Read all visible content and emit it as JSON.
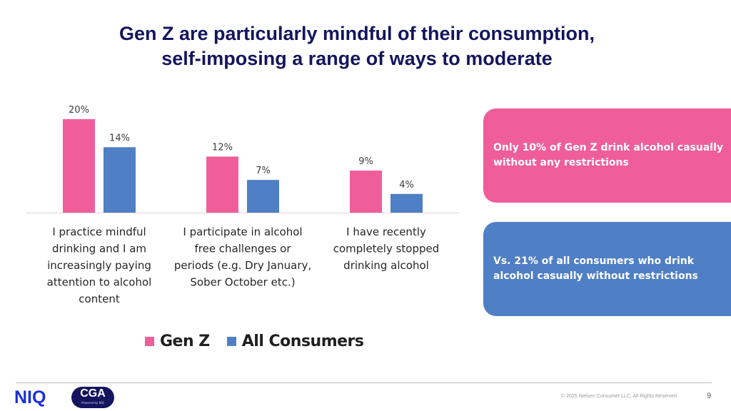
{
  "slide": {
    "title_line1": "Gen Z are particularly mindful of their consumption,",
    "title_line2": "self-imposing a range of ways to moderate",
    "page_number": "9",
    "copyright": "© 2025 Nielsen Consumer LLC. All Rights Reserved."
  },
  "chart_data": {
    "type": "bar",
    "categories": [
      [
        "I practice mindful",
        "drinking and I am",
        "increasingly paying",
        "attention to alcohol",
        "content"
      ],
      [
        "I participate in alcohol",
        "free challenges or",
        "periods (e.g. Dry January,",
        "Sober October etc.)"
      ],
      [
        "I have recently",
        "completely stopped",
        "drinking alcohol"
      ]
    ],
    "series": [
      {
        "name": "Gen Z",
        "values": [
          20,
          12,
          9
        ],
        "labels": [
          "20%",
          "12%",
          "9%"
        ],
        "color": "#ef5e9b"
      },
      {
        "name": "All Consumers",
        "values": [
          14,
          7,
          4
        ],
        "labels": [
          "14%",
          "7%",
          "4%"
        ],
        "color": "#4f7fc5"
      }
    ],
    "ylim": [
      0,
      20
    ],
    "grid": false,
    "legend_position": "bottom-left"
  },
  "callouts": {
    "gen_z": {
      "text": "Only 10% of Gen Z drink alcohol casually without any restrictions",
      "color": "#ef5e9b"
    },
    "all_consumers": {
      "text": "Vs. 21% of all consumers who drink alcohol casually without restrictions",
      "color": "#4f7fc5"
    }
  },
  "logos": {
    "niq": "NIQ",
    "cga": "CGA",
    "cga_sub": "Powered by NIQ"
  },
  "colors": {
    "title": "#14155e",
    "gen_z": "#ef5e9b",
    "all_consumers": "#4f7fc5",
    "niq_blue": "#1b2fd8"
  }
}
